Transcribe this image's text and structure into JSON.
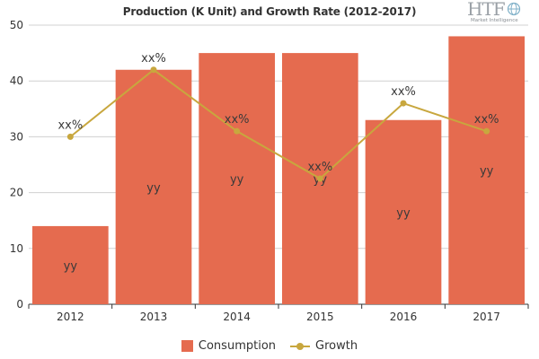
{
  "title": "Production (K Unit) and Growth Rate (2012-2017)",
  "logo": {
    "main": "HTF",
    "sub": "Market Intelligence"
  },
  "colors": {
    "bar": "#e56b4f",
    "line": "#c8a73e",
    "grid": "#d0d0d0",
    "axis": "#333333"
  },
  "chart_data": {
    "type": "bar",
    "categories": [
      "2012",
      "2013",
      "2014",
      "2015",
      "2016",
      "2017"
    ],
    "ylim": [
      0,
      50
    ],
    "yticks": [
      0,
      10,
      20,
      30,
      40,
      50
    ],
    "series": [
      {
        "name": "Consumption",
        "type": "bar",
        "values": [
          14,
          42,
          45,
          45,
          33,
          48
        ],
        "labels": [
          "yy",
          "yy",
          "yy",
          "yy",
          "yy",
          "yy"
        ]
      },
      {
        "name": "Growth",
        "type": "line",
        "values": [
          30,
          42,
          31,
          22.5,
          36,
          31
        ],
        "labels": [
          "xx%",
          "xx%",
          "xx%",
          "xx%",
          "xx%",
          "xx%"
        ]
      }
    ],
    "legend": "bottom-center",
    "grid": true
  }
}
